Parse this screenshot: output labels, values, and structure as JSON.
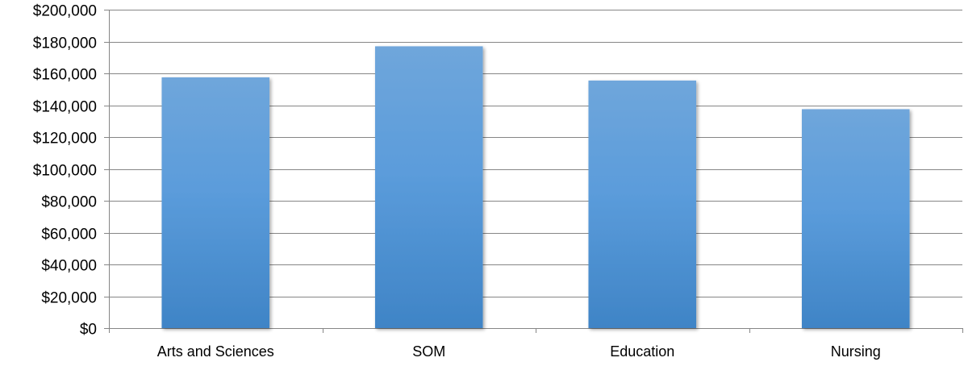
{
  "chart_data": {
    "type": "bar",
    "categories": [
      "Arts and Sciences",
      "SOM",
      "Education",
      "Nursing"
    ],
    "values": [
      157500,
      177000,
      155500,
      137500
    ],
    "ylim": [
      0,
      200000
    ],
    "yticks": [
      0,
      20000,
      40000,
      60000,
      80000,
      100000,
      120000,
      140000,
      160000,
      180000,
      200000
    ],
    "ytick_labels": [
      "$0",
      "$20,000",
      "$40,000",
      "$60,000",
      "$80,000",
      "$100,000",
      "$120,000",
      "$140,000",
      "$160,000",
      "$180,000",
      "$200,000"
    ],
    "grid": true,
    "legend": "none",
    "colors": {
      "bar_top": "#6fa6db",
      "bar_mid": "#5b9cdb",
      "bar_bottom": "#3f84c6",
      "gridline": "#868686",
      "axis": "#868686"
    }
  }
}
